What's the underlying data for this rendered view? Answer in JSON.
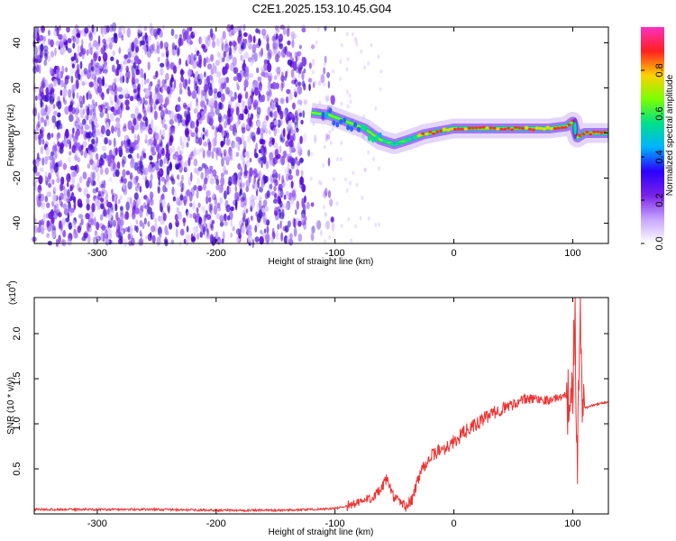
{
  "title": "C2E1.2025.153.10.45.G04",
  "chart_data": [
    {
      "type": "heatmap",
      "xlabel": "Height of straight line (km)",
      "ylabel": "Frequency (Hz)",
      "xlim": [
        -353,
        130
      ],
      "ylim": [
        -49,
        47
      ],
      "xticks": [
        -300,
        -200,
        -100,
        0,
        100
      ],
      "yticks": [
        -40,
        -20,
        0,
        20,
        40
      ],
      "grid": false,
      "colorbar": {
        "label": "Normalized spectral amplitude",
        "range": [
          0,
          1
        ],
        "ticks": [
          0.0,
          0.2,
          0.4,
          0.6,
          0.8
        ],
        "colormap": [
          "#ffffff",
          "#c7a6ff",
          "#7a22e6",
          "#2a00ff",
          "#00b3ff",
          "#00e08a",
          "#7aff00",
          "#ffd000",
          "#ff2020",
          "#ff30c0"
        ]
      },
      "features": {
        "noise_region_x": [
          -353,
          -120
        ],
        "dense_noise_x": [
          -353,
          -125
        ],
        "signal_track": [
          {
            "x": -120,
            "y": 9
          },
          {
            "x": -105,
            "y": 8
          },
          {
            "x": -90,
            "y": 5
          },
          {
            "x": -75,
            "y": 2
          },
          {
            "x": -62,
            "y": -3
          },
          {
            "x": -50,
            "y": -5
          },
          {
            "x": -38,
            "y": -3
          },
          {
            "x": -25,
            "y": -0.5
          },
          {
            "x": -10,
            "y": 1
          },
          {
            "x": 0,
            "y": 2
          },
          {
            "x": 50,
            "y": 2
          },
          {
            "x": 80,
            "y": 2
          },
          {
            "x": 95,
            "y": 3
          },
          {
            "x": 100,
            "y": 5
          },
          {
            "x": 104,
            "y": -2
          },
          {
            "x": 110,
            "y": 0
          },
          {
            "x": 130,
            "y": 0
          }
        ]
      }
    },
    {
      "type": "line",
      "xlabel": "Height of straight line (km)",
      "ylabel": "SNR (10 * v/v)",
      "yscale_label": "(x10",
      "yscale_exp": "4",
      "xlim": [
        -353,
        130
      ],
      "ylim": [
        0,
        2.4
      ],
      "xticks": [
        -300,
        -200,
        -100,
        0,
        100
      ],
      "yticks": [
        0.5,
        1.0,
        1.5,
        2.0
      ],
      "ytick_labels": [
        "0.5",
        "1.0",
        "1.5",
        "2.0"
      ],
      "grid": false,
      "series": [
        {
          "color": "#ee3333",
          "x": [
            -353,
            -300,
            -250,
            -200,
            -150,
            -120,
            -100,
            -90,
            -80,
            -70,
            -62,
            -56,
            -52,
            -48,
            -44,
            -40,
            -35,
            -30,
            -25,
            -20,
            -15,
            -10,
            -5,
            0,
            10,
            20,
            30,
            40,
            50,
            60,
            70,
            80,
            90,
            95,
            98,
            100,
            102,
            104,
            106,
            108,
            112,
            120,
            130
          ],
          "y": [
            0.05,
            0.05,
            0.05,
            0.04,
            0.04,
            0.05,
            0.06,
            0.09,
            0.12,
            0.18,
            0.25,
            0.4,
            0.22,
            0.15,
            0.12,
            0.08,
            0.15,
            0.4,
            0.55,
            0.62,
            0.68,
            0.72,
            0.75,
            0.8,
            0.92,
            1.0,
            1.1,
            1.16,
            1.22,
            1.27,
            1.28,
            1.26,
            1.3,
            1.32,
            1.28,
            1.35,
            2.3,
            0.3,
            2.2,
            1.2,
            1.18,
            1.22,
            1.24
          ]
        }
      ]
    }
  ]
}
